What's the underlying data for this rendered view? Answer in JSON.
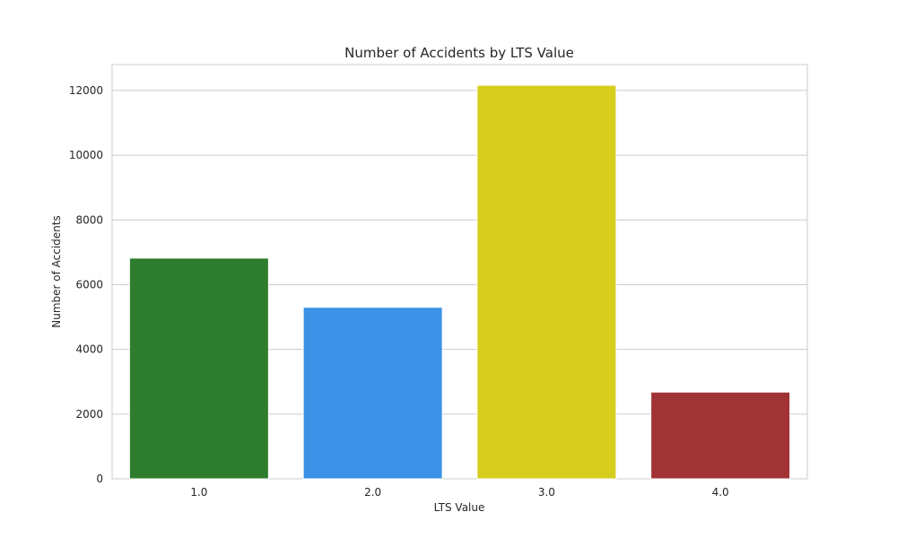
{
  "chart_data": {
    "type": "bar",
    "title": "Number of Accidents by LTS Value",
    "xlabel": "LTS Value",
    "ylabel": "Number of Accidents",
    "categories": [
      "1.0",
      "2.0",
      "3.0",
      "4.0"
    ],
    "values": [
      6820,
      5300,
      12160,
      2680
    ],
    "colors": [
      "#2e7d2e",
      "#3a91e5",
      "#d7cd1e",
      "#a03333"
    ],
    "ylim": [
      0,
      12800
    ],
    "yticks": [
      0,
      2000,
      4000,
      6000,
      8000,
      10000,
      12000
    ],
    "grid": true,
    "legend": "none"
  }
}
